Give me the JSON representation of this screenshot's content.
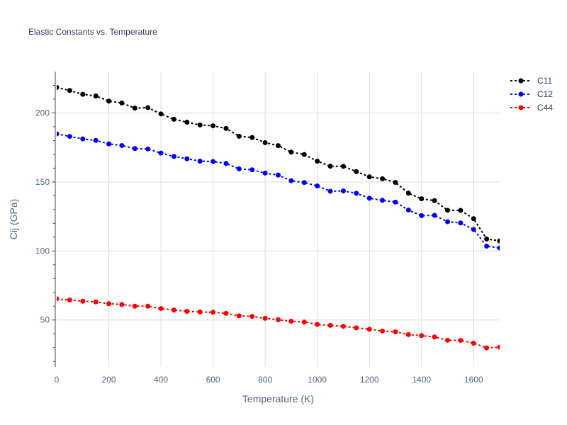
{
  "chart_data": {
    "type": "line",
    "title": "Elastic Constants vs. Temperature",
    "xlabel": "Temperature (K)",
    "ylabel": "Cij (GPa)",
    "xlim": [
      0,
      1700
    ],
    "ylim": [
      16,
      230
    ],
    "xticks": [
      0,
      200,
      400,
      600,
      800,
      1000,
      1200,
      1400,
      1600
    ],
    "yticks": [
      50,
      100,
      150,
      200
    ],
    "grid": true,
    "legend_position": "top-right",
    "x": [
      0,
      50,
      100,
      150,
      200,
      250,
      300,
      350,
      400,
      450,
      500,
      550,
      600,
      650,
      700,
      750,
      800,
      850,
      900,
      950,
      1000,
      1050,
      1100,
      1150,
      1200,
      1250,
      1300,
      1350,
      1400,
      1450,
      1500,
      1550,
      1600,
      1650,
      1700
    ],
    "series": [
      {
        "name": "C11",
        "color": "#000000",
        "values": [
          218.5,
          216.3,
          213.5,
          212.3,
          208.6,
          207.2,
          203.5,
          203.8,
          199.3,
          195.4,
          193.3,
          191.3,
          190.7,
          188.8,
          183.1,
          182.2,
          178.5,
          176.3,
          171.6,
          169.9,
          165.1,
          161.4,
          161.3,
          157.5,
          153.7,
          152.3,
          149.7,
          141.9,
          137.8,
          136.5,
          129.5,
          129.4,
          123.4,
          108.7,
          107.3
        ]
      },
      {
        "name": "C12",
        "color": "#0000ff",
        "values": [
          184.8,
          183.0,
          181.2,
          180.1,
          177.6,
          176.4,
          174.2,
          173.9,
          170.9,
          168.5,
          166.8,
          165.1,
          164.8,
          163.4,
          159.5,
          158.8,
          156.4,
          155.0,
          150.9,
          149.6,
          147.1,
          143.3,
          143.5,
          141.8,
          138.2,
          136.7,
          135.4,
          129.7,
          125.6,
          125.8,
          121.2,
          120.3,
          115.6,
          103.5,
          102.2
        ]
      },
      {
        "name": "C44",
        "color": "#ff0000",
        "values": [
          65.3,
          64.5,
          63.6,
          63.1,
          61.8,
          61.2,
          60.0,
          60.0,
          58.3,
          57.2,
          56.3,
          55.8,
          55.6,
          54.8,
          53.0,
          52.6,
          51.2,
          50.2,
          49.1,
          48.5,
          46.8,
          46.1,
          45.4,
          44.3,
          43.3,
          42.0,
          41.4,
          39.4,
          38.7,
          37.7,
          35.3,
          35.2,
          33.2,
          29.8,
          30.3
        ]
      }
    ]
  }
}
